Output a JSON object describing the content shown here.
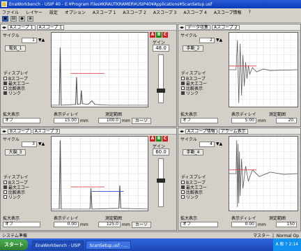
{
  "window": {
    "title": "EnaWorkbench - USIP 40 - E:¥Program Files¥KRAUTKRAMER¥USIP40¥Applications¥ScanSetup.usf"
  },
  "menu": [
    "ファイル",
    "レイヤー",
    "設定",
    "オプション",
    "Aスコープ 1",
    "Aスコープ 2",
    "Aスコープ 3",
    "Aスコープ 4",
    "Aスコープ情報",
    "?"
  ],
  "toolbar": [
    "▣",
    "⊟",
    "◆",
    "⊕"
  ],
  "panes": [
    {
      "tab1": "Aスコープ 1",
      "tab2": "Aスコープ 1",
      "cycle_label": "サイクル",
      "cycle_value": "1",
      "mode_button": "電気_1",
      "display_label": "ディスプレイ",
      "checks": [
        {
          "label": "Bスコープ",
          "on": false
        },
        {
          "label": "最大エコー",
          "on": true
        },
        {
          "label": "比較表示",
          "on": false
        },
        {
          "label": "リンク",
          "on": true
        }
      ],
      "zoom_label": "拡大表示",
      "zoom_value": "オフ",
      "display_delay_label": "表示ディレイ",
      "delay_value": "15.00",
      "delay_unit": "mm",
      "range_label": "測定範囲",
      "range_value": "100.0",
      "range_unit": "mm",
      "mode_select": "カーソ",
      "gain_label": "ゲイン",
      "gain_value": "48.0",
      "leds": [
        "A",
        "B",
        "C"
      ]
    },
    {
      "tab1": "データ収集",
      "tab2": "Aスコープ 2",
      "cycle_label": "サイクル",
      "cycle_value": "2",
      "mode_button": "手動_2",
      "display_label": "ディスプレイ",
      "checks": [
        {
          "label": "Bスコープ",
          "on": false
        },
        {
          "label": "最大エコー",
          "on": true
        },
        {
          "label": "比較表示",
          "on": false
        },
        {
          "label": "リンク",
          "on": true
        }
      ],
      "zoom_label": "拡大表示",
      "zoom_value": "オフ",
      "display_delay_label": "表示ディレイ",
      "delay_value": "5.00",
      "delay_unit": "mm",
      "range_label": "測定範囲",
      "range_value": "20.",
      "mode_select": "",
      "gain_label": "",
      "gain_value": "",
      "leds": []
    },
    {
      "tab1": "Bスコープ",
      "tab2": "Aスコープ 3",
      "cycle_label": "サイクル",
      "cycle_value": "3",
      "mode_button": "大脳_3",
      "display_label": "ディスプレイ",
      "checks": [
        {
          "label": "Bスコープ",
          "on": false
        },
        {
          "label": "最大エコー",
          "on": true
        },
        {
          "label": "比較表示",
          "on": false
        },
        {
          "label": "リンク",
          "on": false
        }
      ],
      "zoom_label": "拡大表示",
      "zoom_value": "オフ",
      "display_delay_label": "表示ディレイ",
      "delay_value": "0.00",
      "delay_unit": "mm",
      "range_label": "測定範囲",
      "range_value": "125.0",
      "range_unit": "mm",
      "mode_select": "カーソ",
      "gain_label": "ゲイン",
      "gain_value": "60.0",
      "leds": [
        "A",
        "B",
        "C"
      ]
    },
    {
      "tab1": "Aスコープ情報",
      "tab2": "アラーム表示",
      "cycle_label": "サイクル",
      "cycle_value": "4",
      "mode_button": "手動_4",
      "display_label": "ディスプレイ",
      "checks": [
        {
          "label": "Bスコープ",
          "on": false
        },
        {
          "label": "最大エコー",
          "on": true
        },
        {
          "label": "比較表示",
          "on": false
        },
        {
          "label": "リンク",
          "on": false
        }
      ],
      "zoom_label": "拡大表示",
      "zoom_value": "オフ",
      "display_delay_label": "表示ディレイ",
      "delay_value": "0.00",
      "delay_unit": "mm",
      "range_label": "測定範囲",
      "range_value": "150",
      "mode_select": "",
      "gain_label": "",
      "gain_value": "",
      "leds": []
    }
  ],
  "statusbar": {
    "left": "システム準備",
    "right_1": "マスター",
    "right_2": "Normal Op"
  },
  "taskbar": {
    "start": "スタート",
    "tasks": [
      "EnaWorkbench - USIP",
      "ScanSetup.usf - ..."
    ],
    "tray": "A 般 ? 2:14"
  },
  "colors": {
    "titlebar": "#0a3ab8",
    "trace": "#555555",
    "gate_red": "#e04040",
    "gate_blue": "#3050d0",
    "led_a": "#d02020",
    "led_b": "#1a8a1a",
    "led_c": "#d02020"
  }
}
